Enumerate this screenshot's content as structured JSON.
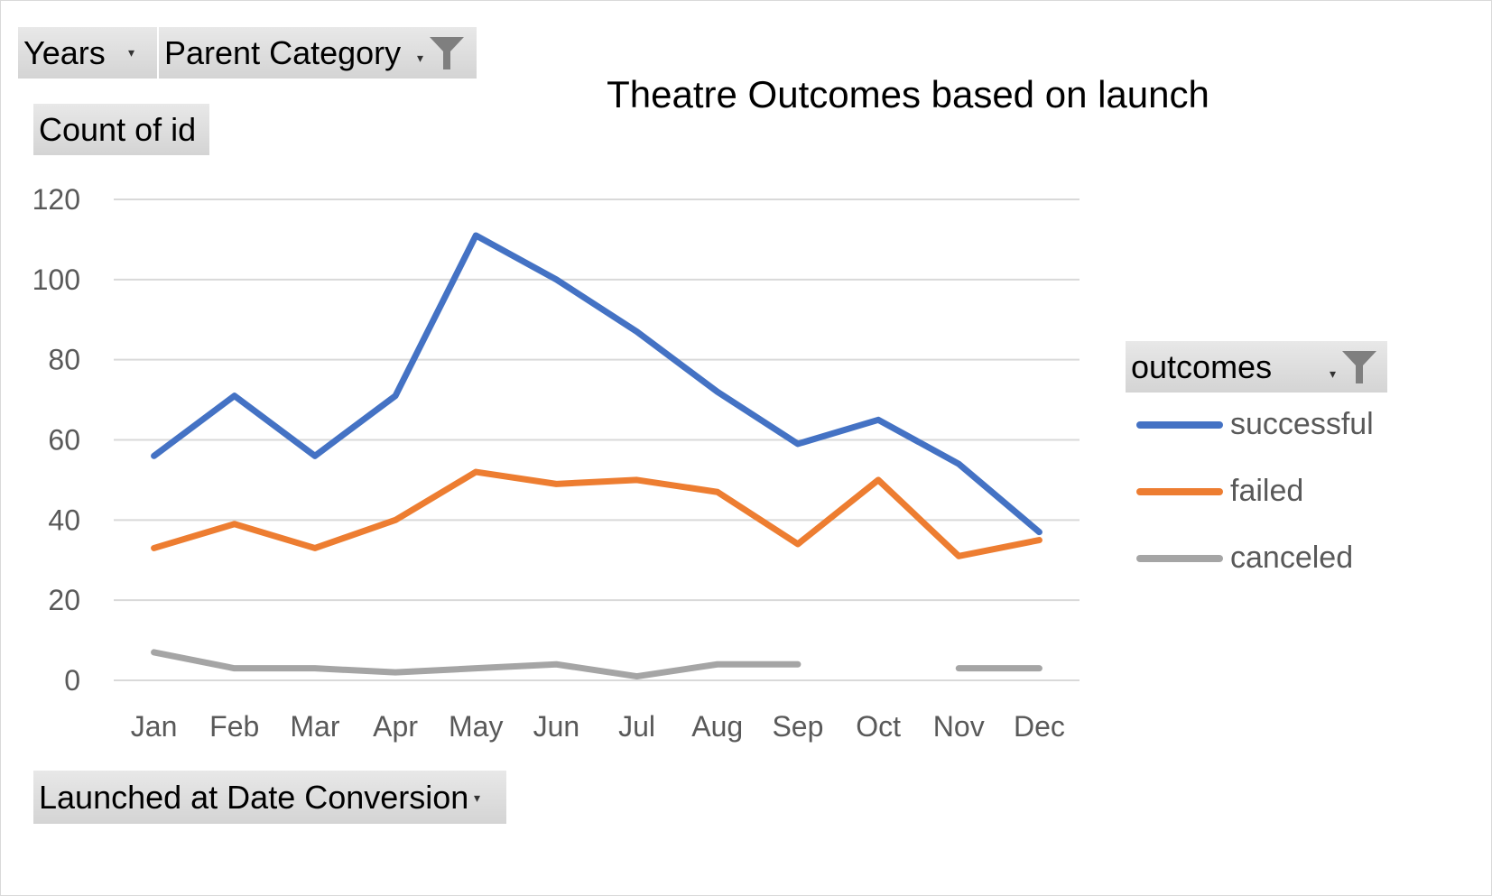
{
  "pivot": {
    "years_label": "Years",
    "parent_category_label": "Parent Category",
    "value_field_label": "Count of id",
    "axis_field_label": "Launched at Date Conversion",
    "legend_field_label": "outcomes",
    "funnel_icon": "funnel-icon",
    "dropdown_icon": "chevron-down-icon"
  },
  "chart_data": {
    "type": "line",
    "title": "Theatre Outcomes based on launch",
    "categories": [
      "Jan",
      "Feb",
      "Mar",
      "Apr",
      "May",
      "Jun",
      "Jul",
      "Aug",
      "Sep",
      "Oct",
      "Nov",
      "Dec"
    ],
    "ylim": [
      0,
      120
    ],
    "yticks": [
      0,
      20,
      40,
      60,
      80,
      100,
      120
    ],
    "grid": true,
    "legend_position": "right",
    "series": [
      {
        "name": "successful",
        "color": "#4472c4",
        "values": [
          56,
          71,
          56,
          71,
          111,
          100,
          87,
          72,
          59,
          65,
          54,
          37
        ]
      },
      {
        "name": "failed",
        "color": "#ed7d31",
        "values": [
          33,
          39,
          33,
          40,
          52,
          49,
          50,
          47,
          34,
          50,
          31,
          35
        ]
      },
      {
        "name": "canceled",
        "color": "#a5a5a5",
        "values": [
          7,
          3,
          3,
          2,
          3,
          4,
          1,
          4,
          4,
          null,
          3,
          3
        ]
      }
    ]
  }
}
